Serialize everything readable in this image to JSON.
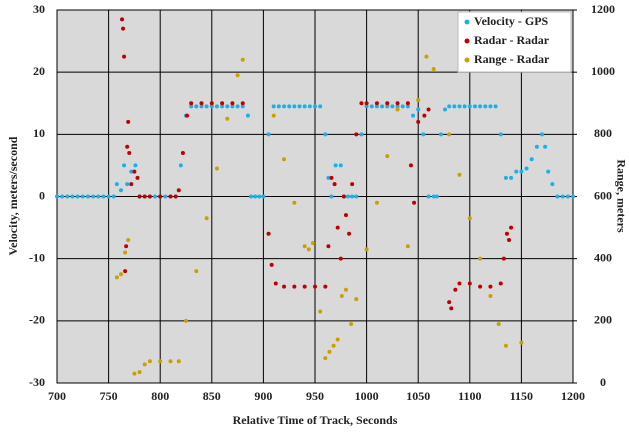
{
  "chart_data": {
    "type": "scatter",
    "xlabel": "Relative Time of Track, Seconds",
    "ylabel": "Velocity, meters/second",
    "y2label": "Range, meters",
    "xlim": [
      700,
      1200
    ],
    "xticks": [
      700,
      750,
      800,
      850,
      900,
      950,
      1000,
      1050,
      1100,
      1150,
      1200
    ],
    "ylim": [
      -30,
      30
    ],
    "yticks": [
      -30,
      -20,
      -10,
      0,
      10,
      20,
      30
    ],
    "y2lim": [
      0,
      1200
    ],
    "y2ticks": [
      0,
      200,
      400,
      600,
      800,
      1000,
      1200
    ],
    "grid": true,
    "legend": "top-right",
    "plot_background": "#d9d9d9",
    "series": [
      {
        "name": "Velocity - GPS",
        "color": "#1cb0e6",
        "x": [
          700,
          705,
          710,
          715,
          720,
          725,
          730,
          735,
          740,
          745,
          750,
          755,
          758,
          762,
          765,
          768,
          772,
          776,
          780,
          785,
          790,
          795,
          800,
          805,
          810,
          815,
          820,
          825,
          830,
          835,
          840,
          845,
          850,
          855,
          860,
          865,
          870,
          875,
          880,
          885,
          888,
          892,
          896,
          900,
          905,
          910,
          915,
          920,
          925,
          930,
          935,
          940,
          945,
          950,
          955,
          960,
          963,
          966,
          970,
          975,
          978,
          982,
          986,
          990,
          995,
          1000,
          1005,
          1010,
          1015,
          1020,
          1025,
          1030,
          1035,
          1040,
          1045,
          1050,
          1055,
          1060,
          1065,
          1068,
          1072,
          1076,
          1080,
          1085,
          1090,
          1095,
          1100,
          1105,
          1110,
          1115,
          1120,
          1125,
          1130,
          1135,
          1140,
          1145,
          1150,
          1155,
          1160,
          1165,
          1170,
          1173,
          1176,
          1180,
          1185,
          1190,
          1195,
          1200
        ],
        "values": [
          0,
          0,
          0,
          0,
          0,
          0,
          0,
          0,
          0,
          0,
          0,
          0,
          2,
          1,
          5,
          2,
          4,
          5,
          0,
          0,
          0,
          0,
          0,
          0,
          0,
          0,
          5,
          13,
          14.5,
          14.5,
          14.5,
          14.5,
          14.5,
          14.5,
          14.5,
          14.5,
          14.5,
          14.5,
          14.5,
          13,
          0,
          0,
          0,
          0,
          10,
          14.5,
          14.5,
          14.5,
          14.5,
          14.5,
          14.5,
          14.5,
          14.5,
          14.5,
          14.5,
          10,
          3,
          0,
          5,
          5,
          0,
          0,
          0,
          0,
          10,
          14.5,
          14.5,
          14.5,
          14.5,
          14.5,
          14.5,
          14.5,
          14.5,
          14.5,
          13,
          14,
          10,
          0,
          0,
          0,
          10,
          14,
          14.5,
          14.5,
          14.5,
          14.5,
          14.5,
          14.5,
          14.5,
          14.5,
          14.5,
          14.5,
          10,
          3,
          3,
          4,
          4,
          4.5,
          6,
          8,
          10,
          8,
          4,
          2,
          0,
          0,
          0,
          0
        ]
      },
      {
        "name": "Radar - Radar",
        "color": "#c00000",
        "x": [
          763,
          764,
          765,
          766,
          767,
          768,
          769,
          770,
          772,
          775,
          778,
          780,
          785,
          790,
          800,
          810,
          815,
          818,
          822,
          826,
          830,
          840,
          850,
          860,
          870,
          880,
          905,
          908,
          912,
          920,
          930,
          940,
          950,
          960,
          963,
          966,
          969,
          972,
          975,
          978,
          980,
          983,
          986,
          990,
          995,
          1000,
          1010,
          1020,
          1030,
          1040,
          1043,
          1046,
          1050,
          1056,
          1060,
          1080,
          1082,
          1086,
          1090,
          1100,
          1110,
          1120,
          1130,
          1133,
          1136,
          1138,
          1140
        ],
        "values": [
          28.5,
          27,
          22.5,
          -12,
          -8,
          8,
          12,
          7,
          2,
          4,
          3,
          0,
          0,
          0,
          0,
          0,
          0,
          1,
          7,
          13,
          15,
          15,
          15,
          15,
          15,
          15,
          -6,
          -11,
          -14,
          -14.5,
          -14.5,
          -14.5,
          -14.5,
          -14.5,
          -8,
          3,
          2,
          -5,
          -10,
          0,
          -3,
          -6,
          2,
          10,
          15,
          15,
          15,
          15,
          15,
          15,
          5,
          -1,
          12,
          13,
          14,
          -17,
          -18,
          -15,
          -14,
          -14,
          -14.5,
          -14.5,
          -14,
          -10,
          -6,
          -7,
          -5
        ]
      },
      {
        "name": "Range - Radar",
        "color": "#c9a000",
        "x": [
          758,
          762,
          766,
          769,
          775,
          780,
          785,
          790,
          800,
          810,
          818,
          825,
          835,
          845,
          855,
          865,
          875,
          880,
          910,
          920,
          930,
          940,
          944,
          948,
          955,
          960,
          964,
          968,
          972,
          976,
          980,
          985,
          990,
          1000,
          1010,
          1020,
          1030,
          1040,
          1050,
          1058,
          1065,
          1080,
          1090,
          1100,
          1110,
          1120,
          1128,
          1135,
          1150
        ],
        "values": [
          340,
          350,
          420,
          460,
          30,
          35,
          60,
          70,
          70,
          70,
          70,
          200,
          360,
          530,
          690,
          850,
          990,
          1040,
          860,
          720,
          580,
          440,
          430,
          450,
          230,
          80,
          100,
          120,
          140,
          280,
          300,
          190,
          270,
          430,
          580,
          730,
          880,
          440,
          910,
          1050,
          1010,
          800,
          670,
          530,
          400,
          280,
          190,
          120,
          130
        ],
        "axis": "y2"
      }
    ]
  }
}
